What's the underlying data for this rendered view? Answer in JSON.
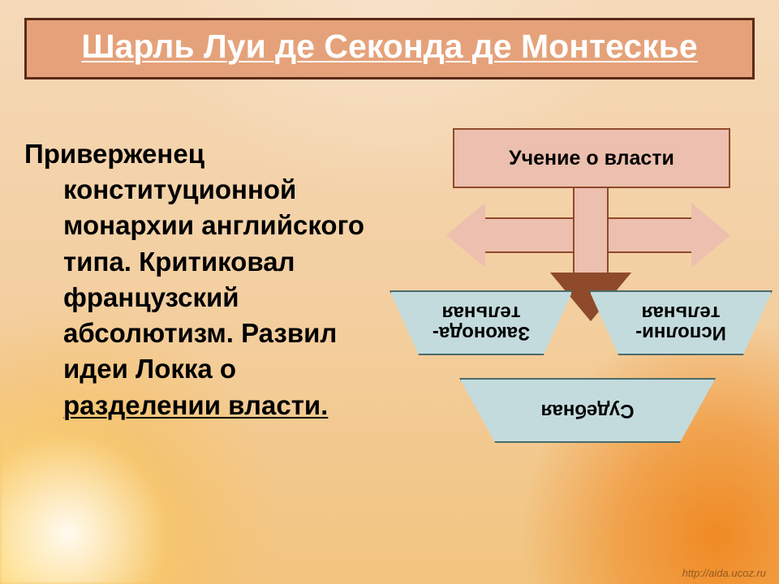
{
  "colors": {
    "title_bg": "#e5a27a",
    "title_border": "#5a2a18",
    "title_text": "#ffffff",
    "arrow_fill": "#ecbfae",
    "arrow_border": "#8e4a2a",
    "trap_fill": "#c3dbdc",
    "trap_border": "#4a6a6c",
    "body_text": "#000000",
    "slide_bg_top": "#f5d9b8",
    "slide_bg_bottom": "#f2c47f",
    "glow_yellow": "#f7c05a",
    "glow_orange": "#f08a24"
  },
  "typography": {
    "title_fontsize": 41,
    "body_fontsize": 33,
    "node_fontsize": 24,
    "top_box_fontsize": 25,
    "title_weight": "bold",
    "body_weight": "bold"
  },
  "title": "Шарль Луи де Секонда де Монтескье",
  "body": {
    "text_prefix": "Приверженец конституционной монархии английского типа. Критиковал французский абсолютизм. Развил идеи Локка о ",
    "underlined": "разделении власти."
  },
  "diagram": {
    "type": "flowchart",
    "root": {
      "label": "Учение о власти",
      "shape": "rect"
    },
    "branches": [
      {
        "label_line1": "Законода-",
        "label_line2": "тельная",
        "shape": "trapezoid",
        "rotated": true
      },
      {
        "label_line1": "Исполни-",
        "label_line2": "тельная",
        "shape": "trapezoid",
        "rotated": true
      },
      {
        "label_line1": "Судебная",
        "label_line2": "",
        "shape": "trapezoid",
        "rotated": true
      }
    ],
    "arrow": {
      "directions": [
        "left",
        "down",
        "right"
      ],
      "fill": "#ecbfae",
      "border": "#8e4a2a"
    }
  },
  "footer": "http://aida.ucoz.ru"
}
